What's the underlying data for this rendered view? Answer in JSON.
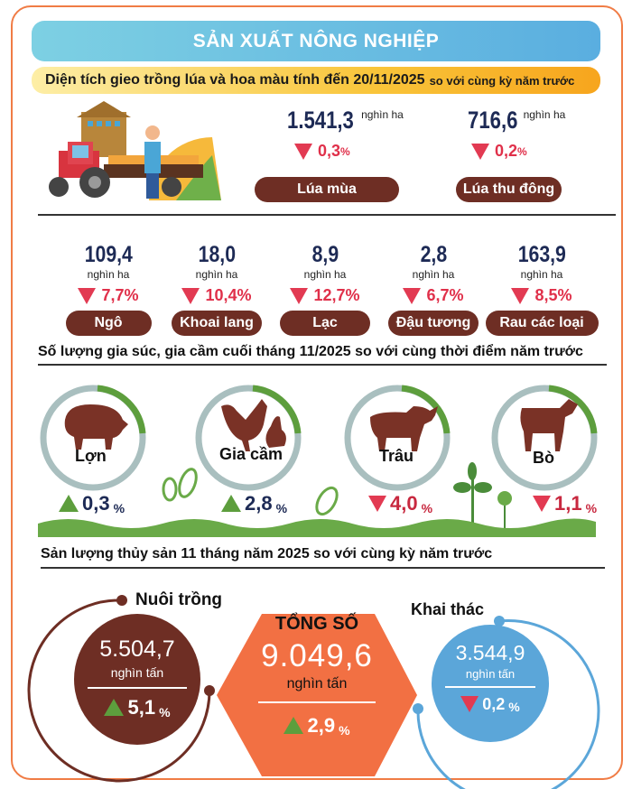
{
  "header": {
    "title": "SẢN XUẤT NÔNG NGHIỆP",
    "subtitle": "Diện tích gieo trồng lúa và hoa màu tính đến 20/11/2025",
    "subtitle_small": "so với cùng kỳ năm trước"
  },
  "rice": [
    {
      "value": "1.541,3",
      "unit": "nghìn ha",
      "change": "0,3",
      "pct": "%",
      "direction": "down",
      "label": "Lúa mùa"
    },
    {
      "value": "716,6",
      "unit": "nghìn ha",
      "change": "0,2",
      "pct": "%",
      "direction": "down",
      "label": "Lúa thu đông"
    }
  ],
  "crops": [
    {
      "value": "109,4",
      "unit": "nghìn ha",
      "change": "7,7%",
      "label": "Ngô"
    },
    {
      "value": "18,0",
      "unit": "nghìn ha",
      "change": "10,4%",
      "label": "Khoai lang"
    },
    {
      "value": "8,9",
      "unit": "nghìn ha",
      "change": "12,7%",
      "label": "Lạc"
    },
    {
      "value": "2,8",
      "unit": "nghìn ha",
      "change": "6,7%",
      "label": "Đậu tương"
    },
    {
      "value": "163,9",
      "unit": "nghìn ha",
      "change": "8,5%",
      "label": "Rau các loại"
    }
  ],
  "livestock": {
    "heading": "Số lượng gia súc, gia cầm cuối tháng 11/2025 so với cùng thời điểm năm trước",
    "items": [
      {
        "label": "Lợn",
        "change": "0,3",
        "pct": "%",
        "direction": "up"
      },
      {
        "label": "Gia cầm",
        "change": "2,8",
        "pct": "%",
        "direction": "up"
      },
      {
        "label": "Trâu",
        "change": "4,0",
        "pct": "%",
        "direction": "down"
      },
      {
        "label": "Bò",
        "change": "1,1",
        "pct": "%",
        "direction": "down"
      }
    ]
  },
  "fishery": {
    "heading": "Sản lượng thủy sản 11 tháng năm 2025 so với cùng kỳ năm trước",
    "aquaculture": {
      "label": "Nuôi trồng",
      "value": "5.504,7",
      "unit": "nghìn tấn",
      "change": "5,1",
      "pct": "%",
      "direction": "up"
    },
    "total": {
      "label": "TỔNG SỐ",
      "value": "9.049,6",
      "unit": "nghìn tấn",
      "change": "2,9",
      "pct": "%",
      "direction": "up"
    },
    "catch": {
      "label": "Khai thác",
      "value": "3.544,9",
      "unit": "nghìn tấn",
      "change": "0,2",
      "pct": "%",
      "direction": "down"
    }
  },
  "colors": {
    "brown": "#6e2e24",
    "orange": "#f27043",
    "blue": "#5ba6d9",
    "green": "#5d9e3d",
    "red": "#e23a52",
    "navy": "#1d2a55"
  }
}
